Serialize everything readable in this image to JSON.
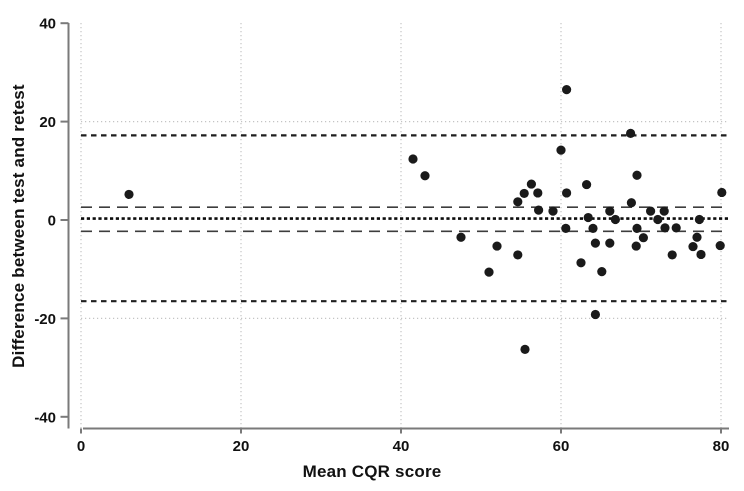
{
  "chart_data": {
    "type": "scatter",
    "title": "",
    "xlabel": "Mean CQR score",
    "ylabel": "Difference between test and retest",
    "xlim": [
      0,
      80
    ],
    "ylim": [
      -40,
      40
    ],
    "x_ticks": [
      0,
      20,
      40,
      60,
      80
    ],
    "y_ticks": [
      40,
      20,
      0,
      -20,
      -40
    ],
    "grid": {
      "vertical_at": [
        0,
        20,
        40,
        60,
        80
      ],
      "horizontal_at": [
        20,
        -20
      ],
      "style": "light-dotted"
    },
    "legend": "none",
    "reference_lines": {
      "mean": 0.3,
      "ci_upper": 2.6,
      "ci_lower": -2.3,
      "loa_upper": 17.2,
      "loa_lower": -16.5
    },
    "points": [
      [
        6,
        5.2
      ],
      [
        41.5,
        12.4
      ],
      [
        43,
        9
      ],
      [
        47.5,
        -3.5
      ],
      [
        51,
        -10.6
      ],
      [
        52,
        -5.3
      ],
      [
        54.6,
        3.7
      ],
      [
        54.6,
        -7.1
      ],
      [
        55.4,
        5.4
      ],
      [
        55.5,
        -26.3
      ],
      [
        56.3,
        7.3
      ],
      [
        57.1,
        5.5
      ],
      [
        57.2,
        2.0
      ],
      [
        59,
        1.8
      ],
      [
        60,
        14.2
      ],
      [
        60.6,
        -1.7
      ],
      [
        60.7,
        26.5
      ],
      [
        60.7,
        5.5
      ],
      [
        62.5,
        -8.7
      ],
      [
        63.2,
        7.2
      ],
      [
        63.4,
        0.5
      ],
      [
        64,
        -1.7
      ],
      [
        64.3,
        -4.7
      ],
      [
        64.3,
        -19.2
      ],
      [
        65.1,
        -10.5
      ],
      [
        66.1,
        1.8
      ],
      [
        66.1,
        -4.7
      ],
      [
        66.8,
        0.1
      ],
      [
        68.7,
        17.6
      ],
      [
        68.8,
        3.5
      ],
      [
        69.4,
        -5.3
      ],
      [
        69.5,
        9.1
      ],
      [
        69.5,
        -1.7
      ],
      [
        70.3,
        -3.6
      ],
      [
        71.2,
        1.8
      ],
      [
        72.1,
        0.1
      ],
      [
        72.9,
        1.8
      ],
      [
        73,
        -1.6
      ],
      [
        73.9,
        -7.1
      ],
      [
        74.4,
        -1.6
      ],
      [
        76.5,
        -5.4
      ],
      [
        77,
        -3.5
      ],
      [
        77.3,
        0.1
      ],
      [
        77.5,
        -7
      ],
      [
        79.9,
        -5.2
      ],
      [
        80.1,
        5.6
      ]
    ],
    "colors": {
      "point": "#1a1a1a",
      "mean_line": "#0d0d0d",
      "ci_line": "#3d3d3d",
      "loa_line": "#1f1f1f",
      "grid_line": "#c4c4c4",
      "axis_line": "#7a7a7a",
      "text": "#111111"
    }
  }
}
